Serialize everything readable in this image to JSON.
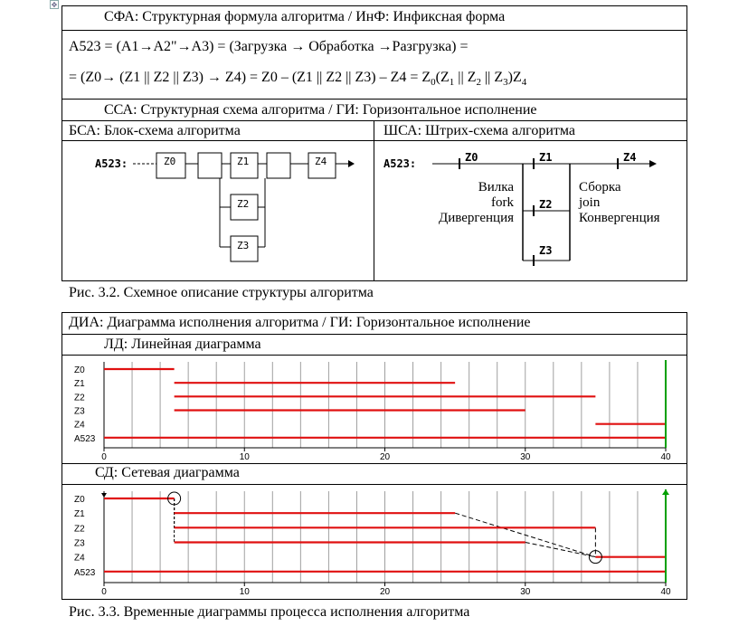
{
  "header": {
    "sfa_title": "СФА: Структурная формула алгоритма / ИнФ: Инфиксная форма",
    "formula_line1": "A523  =  (A1→A2\"→A3)  =  (Загрузка → Обработка →Разгрузка)  =",
    "formula_line2_a": "=  (Z0→ (Z1 || Z2 || Z3) → Z4)  =  Z0 – (Z1 || Z2 || Z3) – Z4  =   Z",
    "formula_line2_b": "0",
    "formula_line2_c": "(Z",
    "formula_line2_d": "1",
    "formula_line2_e": " || Z",
    "formula_line2_f": "2",
    "formula_line2_g": " || Z",
    "formula_line2_h": "3",
    "formula_line2_i": ")Z",
    "formula_line2_j": "4",
    "ssa_title": "ССА: Структурная схема алгоритма / ГИ: Горизонтальное исполнение",
    "bsa_title": "БСА: Блок-схема алгоритма",
    "shsa_title": "ШСА: Штрих-схема алгоритма"
  },
  "block_scheme": {
    "label": "A523:",
    "blocks": [
      "Z0",
      "Z1",
      "Z2",
      "Z3",
      "Z4"
    ]
  },
  "stroke_scheme": {
    "label": "A523:",
    "nodes": [
      "Z0",
      "Z1",
      "Z2",
      "Z3",
      "Z4"
    ],
    "fork_labels": [
      "Вилка",
      "fork",
      "Дивергенция"
    ],
    "join_labels": [
      "Сборка",
      "join",
      "Конвергенция"
    ]
  },
  "caption1": "Рис. 3.2. Схемное описание структуры алгоритма",
  "dia": {
    "title": "ДИА: Диаграмма исполнения алгоритма / ГИ: Горизонтальное исполнение",
    "ld_title": "ЛД: Линейная диаграмма",
    "sd_title": "СД: Сетевая диаграмма"
  },
  "chart_data": [
    {
      "type": "gantt",
      "title": "ЛД: Линейная диаграмма",
      "rows": [
        "Z0",
        "Z1",
        "Z2",
        "Z3",
        "Z4",
        "A523"
      ],
      "x_ticks": [
        0,
        10,
        20,
        30,
        40
      ],
      "xlim": [
        0,
        40
      ],
      "bars": [
        {
          "row": "Z0",
          "start": 0,
          "end": 5
        },
        {
          "row": "Z1",
          "start": 5,
          "end": 25
        },
        {
          "row": "Z2",
          "start": 5,
          "end": 35
        },
        {
          "row": "Z3",
          "start": 5,
          "end": 30
        },
        {
          "row": "Z4",
          "start": 35,
          "end": 40
        },
        {
          "row": "A523",
          "start": 0,
          "end": 40
        }
      ],
      "bar_color": "#e01010",
      "end_marker_color": "#00a000",
      "grid": true
    },
    {
      "type": "gantt",
      "title": "СД: Сетевая диаграмма",
      "rows": [
        "Z0",
        "Z1",
        "Z2",
        "Z3",
        "Z4",
        "A523"
      ],
      "x_ticks": [
        0,
        10,
        20,
        30,
        40
      ],
      "xlim": [
        0,
        40
      ],
      "bars": [
        {
          "row": "Z0",
          "start": 0,
          "end": 5
        },
        {
          "row": "Z1",
          "start": 5,
          "end": 25
        },
        {
          "row": "Z2",
          "start": 5,
          "end": 35
        },
        {
          "row": "Z3",
          "start": 5,
          "end": 30
        },
        {
          "row": "Z4",
          "start": 35,
          "end": 40
        },
        {
          "row": "A523",
          "start": 0,
          "end": 40
        }
      ],
      "fork_at": 5,
      "join_at": 35,
      "bar_color": "#e01010",
      "end_marker_color": "#00a000",
      "grid": true
    }
  ],
  "caption2": "Рис. 3.3. Временные диаграммы процесса исполнения алгоритма"
}
